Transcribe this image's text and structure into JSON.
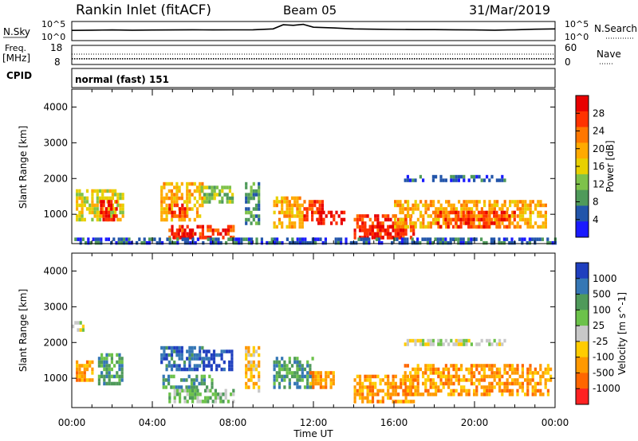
{
  "header": {
    "title": "Rankin Inlet (fitACF)",
    "beam": "Beam 05",
    "date": "31/Mar/2019"
  },
  "noise_panel": {
    "left_label": "N.Sky",
    "left_ticks": [
      "10^5",
      "10^0"
    ],
    "right_label": "N.Search",
    "right_ticks": [
      "10^5",
      "10^0"
    ]
  },
  "freq_panel": {
    "left_label_1": "Freq.",
    "left_label_2": "[MHz]",
    "left_ticks": [
      "18",
      "8"
    ],
    "right_label": "Nave",
    "right_ticks": [
      "60",
      "0"
    ]
  },
  "cpid": {
    "label": "CPID",
    "mode": "normal (fast) 151"
  },
  "x_axis": {
    "label": "Time UT",
    "ticks": [
      "00:00",
      "04:00",
      "08:00",
      "12:00",
      "16:00",
      "20:00",
      "00:00"
    ]
  },
  "colors": {
    "power": [
      "#1a1aff",
      "#2255aa",
      "#4f9a5a",
      "#7ec24a",
      "#e8d000",
      "#ffaa00",
      "#ff7700",
      "#ff3300",
      "#e80000"
    ],
    "velocity": [
      "#1f3fbf",
      "#3577b5",
      "#4f9a5a",
      "#6cc24a",
      "#c8c8c8",
      "#ffcc00",
      "#ff9900",
      "#ff6600",
      "#ff2222"
    ]
  },
  "chart_data": [
    {
      "type": "line",
      "title": "N.Sky",
      "x_range": [
        0,
        24
      ],
      "y_scale": "log",
      "series": [
        {
          "x": [
            0,
            1,
            2,
            3,
            4,
            5,
            6,
            7,
            8,
            9,
            10,
            10.5,
            11,
            11.5,
            12,
            13,
            14,
            15,
            16,
            17,
            18,
            19,
            20,
            21,
            22,
            23,
            24
          ],
          "y": [
            500,
            600,
            700,
            600,
            650,
            700,
            800,
            700,
            750,
            800,
            1500,
            30000,
            20000,
            40000,
            5000,
            3000,
            1500,
            1200,
            1000,
            900,
            900,
            800,
            700,
            600,
            800,
            1200,
            1500
          ]
        }
      ]
    },
    {
      "type": "line",
      "title": "Freq.",
      "x_range": [
        0,
        24
      ],
      "ylim": [
        8,
        18
      ],
      "series": [
        {
          "x": [
            0,
            24
          ],
          "y": [
            11,
            11
          ]
        }
      ]
    },
    {
      "type": "heatmap",
      "colorbar_label": "Power [dB]",
      "colorbar_ticks": [
        "28",
        "24",
        "20",
        "16",
        "12",
        "8",
        "4"
      ],
      "xlim": [
        0,
        24
      ],
      "ylim": [
        180,
        4500
      ],
      "ylabel": "Slant Range [km]",
      "yticks": [
        "4000",
        "3000",
        "2000",
        "1000"
      ],
      "xticks": [
        "00:00",
        "04:00",
        "08:00",
        "12:00",
        "16:00",
        "20:00",
        "00:00"
      ],
      "xlabel": "Time UT",
      "regions": [
        {
          "t": [
            0.2,
            2.6
          ],
          "r": [
            800,
            1700
          ],
          "level": 4
        },
        {
          "t": [
            1.4,
            2.2
          ],
          "r": [
            850,
            1400
          ],
          "level": 8
        },
        {
          "t": [
            4.4,
            6.5
          ],
          "r": [
            800,
            1900
          ],
          "level": 5
        },
        {
          "t": [
            4.8,
            5.6
          ],
          "r": [
            900,
            1300
          ],
          "level": 7
        },
        {
          "t": [
            6.4,
            8.0
          ],
          "r": [
            1300,
            1800
          ],
          "level": 3
        },
        {
          "t": [
            4.8,
            8.0
          ],
          "r": [
            300,
            700
          ],
          "level": 7
        },
        {
          "t": [
            5.0,
            6.0
          ],
          "r": [
            300,
            500
          ],
          "level": 8
        },
        {
          "t": [
            8.6,
            9.3
          ],
          "r": [
            700,
            1900
          ],
          "level": 2
        },
        {
          "t": [
            10.0,
            11.5
          ],
          "r": [
            600,
            1500
          ],
          "level": 5
        },
        {
          "t": [
            11.5,
            12.5
          ],
          "r": [
            800,
            1400
          ],
          "level": 7
        },
        {
          "t": [
            12.2,
            13.5
          ],
          "r": [
            700,
            1100
          ],
          "level": 8
        },
        {
          "t": [
            14.0,
            17.0
          ],
          "r": [
            300,
            1000
          ],
          "level": 7
        },
        {
          "t": [
            14.5,
            16.5
          ],
          "r": [
            300,
            700
          ],
          "level": 8
        },
        {
          "t": [
            16.0,
            23.5
          ],
          "r": [
            600,
            1400
          ],
          "level": 5
        },
        {
          "t": [
            18.0,
            22.0
          ],
          "r": [
            600,
            1100
          ],
          "level": 7
        },
        {
          "t": [
            16.5,
            21.5
          ],
          "r": [
            1900,
            2100
          ],
          "level": 1
        },
        {
          "t": [
            0.0,
            24.0
          ],
          "r": [
            180,
            350
          ],
          "level": 1
        }
      ]
    },
    {
      "type": "heatmap",
      "colorbar_label": "Velocity [m s^-1]",
      "colorbar_ticks": [
        "1000",
        "500",
        "100",
        "25",
        "-25",
        "-100",
        "-500",
        "-1000"
      ],
      "xlim": [
        0,
        24
      ],
      "ylim": [
        180,
        4500
      ],
      "ylabel": "Slant Range [km]",
      "yticks": [
        "4000",
        "3000",
        "2000",
        "1000"
      ],
      "xticks": [
        "00:00",
        "04:00",
        "08:00",
        "12:00",
        "16:00",
        "20:00",
        "00:00"
      ],
      "xlabel": "Time UT",
      "regions": [
        {
          "t": [
            0.2,
            1.2
          ],
          "r": [
            900,
            1500
          ],
          "level": 6
        },
        {
          "t": [
            1.3,
            2.5
          ],
          "r": [
            800,
            1700
          ],
          "level": 2
        },
        {
          "t": [
            4.4,
            6.5
          ],
          "r": [
            1200,
            1900
          ],
          "level": 1
        },
        {
          "t": [
            6.5,
            8.0
          ],
          "r": [
            1200,
            1800
          ],
          "level": 0
        },
        {
          "t": [
            4.5,
            7.0
          ],
          "r": [
            700,
            1100
          ],
          "level": 2
        },
        {
          "t": [
            4.8,
            8.0
          ],
          "r": [
            300,
            700
          ],
          "level": 3
        },
        {
          "t": [
            8.6,
            9.3
          ],
          "r": [
            600,
            1900
          ],
          "level": 5
        },
        {
          "t": [
            10.0,
            12.0
          ],
          "r": [
            700,
            1600
          ],
          "level": 2
        },
        {
          "t": [
            11.8,
            13.0
          ],
          "r": [
            700,
            1200
          ],
          "level": 6
        },
        {
          "t": [
            14.0,
            17.0
          ],
          "r": [
            300,
            1100
          ],
          "level": 6
        },
        {
          "t": [
            16.5,
            23.8
          ],
          "r": [
            500,
            1400
          ],
          "level": 6
        },
        {
          "t": [
            16.5,
            21.5
          ],
          "r": [
            1900,
            2100
          ],
          "level": 4
        },
        {
          "t": [
            0.0,
            0.6
          ],
          "r": [
            2300,
            2600
          ],
          "level": 4
        }
      ]
    }
  ]
}
